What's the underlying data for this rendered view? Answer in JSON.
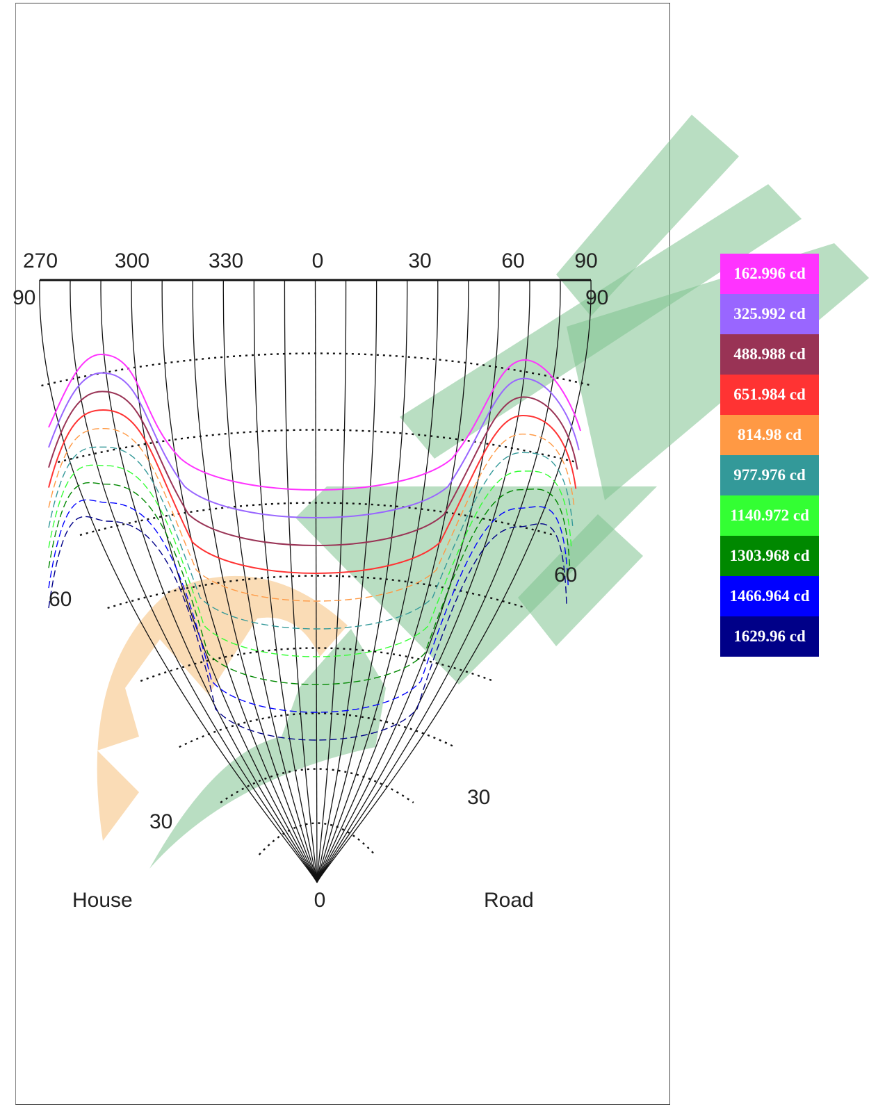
{
  "chart_data": {
    "type": "isocandela-contour",
    "top_axis_ticks": [
      "270",
      "300",
      "330",
      "0",
      "30",
      "60",
      "90"
    ],
    "corner_labels": {
      "left": "90",
      "right": "90"
    },
    "side_labels": {
      "left_60": "60",
      "right_60": "60",
      "left_30": "30",
      "right_30": "30",
      "bottom_0": "0"
    },
    "direction_labels": {
      "left": "House",
      "right": "Road"
    },
    "levels": [
      {
        "label": "162.996 cd",
        "value": 162.996,
        "color": "#ff33ff"
      },
      {
        "label": "325.992 cd",
        "value": 325.992,
        "color": "#9966ff"
      },
      {
        "label": "488.988 cd",
        "value": 488.988,
        "color": "#993355"
      },
      {
        "label": "651.984 cd",
        "value": 651.984,
        "color": "#ff3333"
      },
      {
        "label": "814.98 cd",
        "value": 814.98,
        "color": "#ff9944"
      },
      {
        "label": "977.976 cd",
        "value": 977.976,
        "color": "#339999"
      },
      {
        "label": "1140.972 cd",
        "value": 1140.972,
        "color": "#33ff33"
      },
      {
        "label": "1303.968 cd",
        "value": 1303.968,
        "color": "#008800"
      },
      {
        "label": "1466.964 cd",
        "value": 1466.964,
        "color": "#0000ff"
      },
      {
        "label": "1629.96 cd",
        "value": 1629.96,
        "color": "#000088"
      }
    ]
  }
}
